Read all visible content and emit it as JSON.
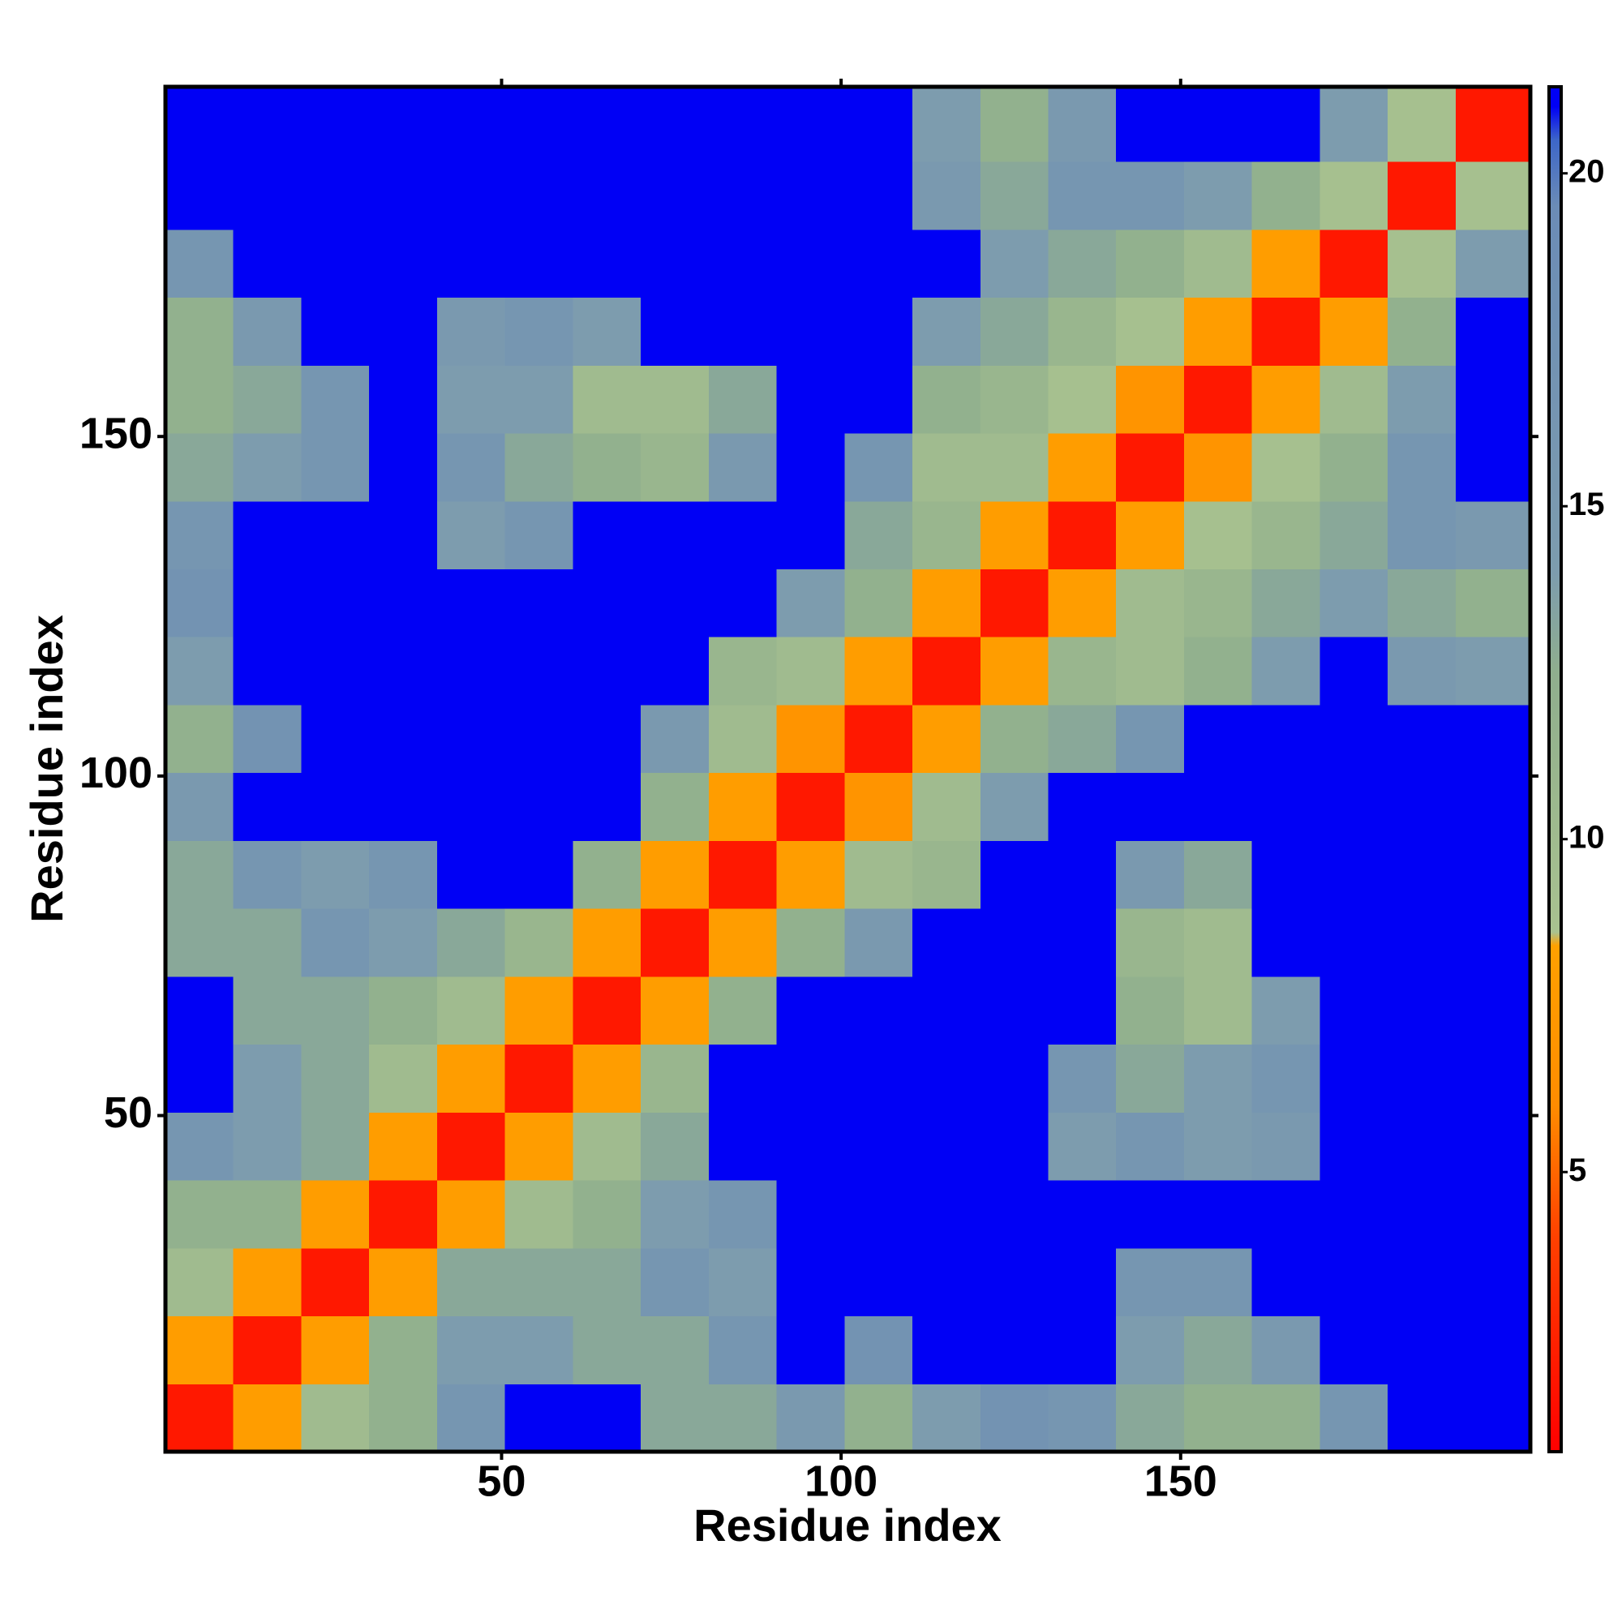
{
  "chart_data": {
    "type": "heatmap",
    "x_label": "Residue index",
    "y_label": "Residue index",
    "x_bins": [
      0.5,
      10.5,
      20.5,
      30.5,
      40.5,
      50.5,
      60.5,
      70.5,
      80.5,
      90.5,
      100.5,
      110.5,
      120.5,
      130.5,
      140.5,
      150.5,
      160.5,
      170.5,
      180.5,
      190.5,
      201.5
    ],
    "y_bins": [
      0.5,
      10.5,
      20.5,
      30.5,
      40.5,
      50.5,
      60.5,
      70.5,
      80.5,
      90.5,
      100.5,
      110.5,
      120.5,
      130.5,
      140.5,
      150.5,
      160.5,
      170.5,
      180.5,
      190.5,
      201.5
    ],
    "z": [
      [
        2,
        8,
        10,
        12,
        16,
        21,
        21,
        13,
        13,
        15,
        12,
        14,
        17,
        16,
        13,
        12,
        12,
        16,
        21,
        21
      ],
      [
        8,
        2,
        8,
        12,
        14,
        14,
        13,
        13,
        16,
        21,
        17,
        21,
        21,
        21,
        14,
        13,
        15,
        21,
        21,
        21
      ],
      [
        10,
        8,
        2,
        8,
        13,
        13,
        13,
        16,
        14,
        21,
        21,
        21,
        21,
        21,
        16,
        16,
        21,
        21,
        21,
        21
      ],
      [
        12,
        12,
        8,
        2,
        8,
        10,
        12,
        14,
        16,
        21,
        21,
        21,
        21,
        21,
        21,
        21,
        21,
        21,
        21,
        21
      ],
      [
        16,
        14,
        13,
        8,
        2,
        8,
        10,
        13,
        21,
        21,
        21,
        21,
        21,
        14,
        16,
        14,
        15,
        21,
        21,
        21
      ],
      [
        21,
        14,
        13,
        10,
        8,
        2,
        8,
        11,
        21,
        21,
        21,
        21,
        21,
        16,
        13,
        14,
        16,
        21,
        21,
        21
      ],
      [
        21,
        13,
        13,
        12,
        10,
        8,
        2,
        8,
        12,
        21,
        21,
        21,
        21,
        21,
        12,
        10,
        14,
        21,
        21,
        21
      ],
      [
        13,
        13,
        16,
        14,
        13,
        11,
        8,
        2,
        8,
        12,
        15,
        21,
        21,
        21,
        11,
        10,
        21,
        21,
        21,
        21
      ],
      [
        13,
        16,
        14,
        16,
        21,
        21,
        12,
        8,
        2,
        8,
        10,
        11,
        21,
        21,
        15,
        13,
        21,
        21,
        21,
        21
      ],
      [
        15,
        21,
        21,
        21,
        21,
        21,
        21,
        12,
        8,
        2,
        7,
        10,
        14,
        21,
        21,
        21,
        21,
        21,
        21,
        21
      ],
      [
        12,
        17,
        21,
        21,
        21,
        21,
        21,
        15,
        10,
        7,
        2,
        8,
        12,
        13,
        16,
        21,
        21,
        21,
        21,
        21
      ],
      [
        14,
        21,
        21,
        21,
        21,
        21,
        21,
        21,
        11,
        10,
        8,
        2,
        8,
        11,
        10,
        12,
        14,
        21,
        15,
        14
      ],
      [
        17,
        21,
        21,
        21,
        21,
        21,
        21,
        21,
        21,
        14,
        12,
        8,
        2,
        8,
        10,
        11,
        13,
        14,
        13,
        12
      ],
      [
        16,
        21,
        21,
        21,
        14,
        16,
        21,
        21,
        21,
        21,
        13,
        11,
        8,
        2,
        8,
        9,
        11,
        13,
        16,
        15
      ],
      [
        13,
        14,
        16,
        21,
        16,
        13,
        12,
        11,
        15,
        21,
        16,
        10,
        10,
        8,
        2,
        7,
        9,
        12,
        16,
        21
      ],
      [
        12,
        13,
        16,
        21,
        14,
        14,
        10,
        10,
        13,
        21,
        21,
        12,
        11,
        9,
        7,
        2,
        8,
        10,
        14,
        21
      ],
      [
        12,
        15,
        21,
        21,
        15,
        16,
        14,
        21,
        21,
        21,
        21,
        14,
        13,
        11,
        9,
        8,
        2,
        8,
        12,
        21
      ],
      [
        16,
        21,
        21,
        21,
        21,
        21,
        21,
        21,
        21,
        21,
        21,
        21,
        14,
        13,
        12,
        10,
        8,
        2,
        9,
        14
      ],
      [
        21,
        21,
        21,
        21,
        21,
        21,
        21,
        21,
        21,
        21,
        21,
        15,
        13,
        16,
        16,
        14,
        12,
        9,
        2,
        9
      ],
      [
        21,
        21,
        21,
        21,
        21,
        21,
        21,
        21,
        21,
        21,
        21,
        14,
        12,
        15,
        21,
        21,
        21,
        14,
        9,
        2
      ]
    ],
    "xlim": [
      0.5,
      201.5
    ],
    "ylim": [
      0.5,
      201.5
    ],
    "xticks": [
      50,
      100,
      150
    ],
    "yticks": [
      50,
      100,
      150
    ],
    "colorbar": {
      "lim": [
        0.8,
        21.3
      ],
      "ticks": [
        5,
        10,
        15,
        20
      ],
      "stops": [
        {
          "value": 0.8,
          "color": "#ff0000"
        },
        {
          "value": 4,
          "color": "#ff4000"
        },
        {
          "value": 6,
          "color": "#ff8c00"
        },
        {
          "value": 8.4,
          "color": "#ffa000"
        },
        {
          "value": 8.6,
          "color": "#a9c28f"
        },
        {
          "value": 12.5,
          "color": "#8fae8e"
        },
        {
          "value": 14,
          "color": "#7d9cae"
        },
        {
          "value": 19.5,
          "color": "#6b8cb6"
        },
        {
          "value": 20.5,
          "color": "#3d66c8"
        },
        {
          "value": 21,
          "color": "#0000f5"
        },
        {
          "value": 21.3,
          "color": "#0000f5"
        }
      ]
    }
  }
}
